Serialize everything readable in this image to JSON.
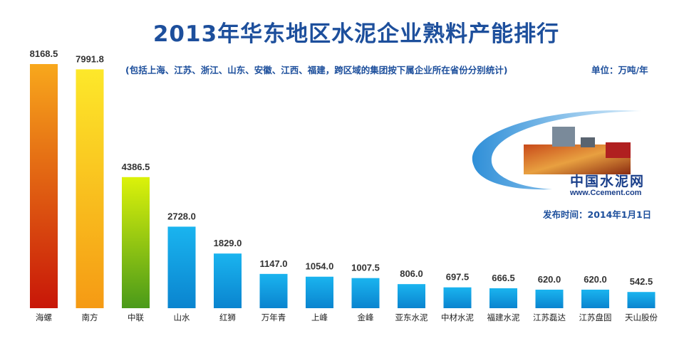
{
  "page": {
    "title": "2013年华东地区水泥企业熟料产能排行",
    "subtitle": "(包括上海、江苏、浙江、山东、安徽、江西、福建，跨区域的集团按下属企业所在省份分别统计)",
    "unit": "单位：万吨/年",
    "publish_date": "发布时间：2014年1月1日",
    "logo_name": "中国水泥网",
    "logo_url": "www.Ccement.com"
  },
  "colors": {
    "title": "#1d4f9c",
    "blue_bar_top": "#1ab4ef",
    "blue_bar_bottom": "#0a84cf"
  },
  "chart_data": {
    "type": "bar",
    "categories": [
      "海螺",
      "南方",
      "中联",
      "山水",
      "红狮",
      "万年青",
      "上峰",
      "金峰",
      "亚东水泥",
      "中材水泥",
      "福建水泥",
      "江苏磊达",
      "江苏盘固",
      "天山股份"
    ],
    "values": [
      8168.5,
      7991.8,
      4386.5,
      2728.0,
      1829.0,
      1147.0,
      1054.0,
      1007.5,
      806.0,
      697.5,
      666.5,
      620.0,
      620.0,
      542.5
    ],
    "value_labels": [
      "8168.5",
      "7991.8",
      "4386.5",
      "2728.0",
      "1829.0",
      "1147.0",
      "1054.0",
      "1007.5",
      "806.0",
      "697.5",
      "666.5",
      "620.0",
      "620.0",
      "542.5"
    ],
    "bar_colors": [
      "red-orange",
      "orange-yellow",
      "yellow-green",
      "blue",
      "blue",
      "blue",
      "blue",
      "blue",
      "blue",
      "blue",
      "blue",
      "blue",
      "blue",
      "blue"
    ],
    "ylim": [
      0,
      8168.5
    ],
    "grid": false,
    "legend": "none"
  }
}
